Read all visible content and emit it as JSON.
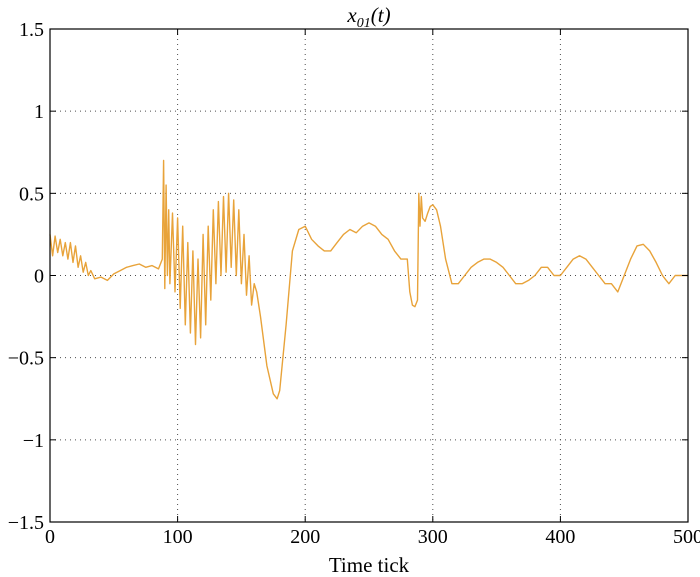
{
  "chart_data": {
    "type": "line",
    "title": {
      "base": "x",
      "sub": "01",
      "rest": "(t)"
    },
    "xlabel": "Time tick",
    "ylabel": "",
    "xlim": [
      0,
      500
    ],
    "ylim": [
      -1.5,
      1.5
    ],
    "xticks": [
      0,
      100,
      200,
      300,
      400,
      500
    ],
    "xtick_labels": [
      "0",
      "100",
      "200",
      "300",
      "400",
      "500"
    ],
    "yticks": [
      -1.5,
      -1,
      -0.5,
      0,
      0.5,
      1,
      1.5
    ],
    "ytick_labels": [
      "−1.5",
      "−1",
      "−0.5",
      "0",
      "0.5",
      "1",
      "1.5"
    ],
    "grid": true,
    "series": [
      {
        "color": "#E8A33A",
        "x": [
          0,
          2,
          4,
          6,
          8,
          10,
          12,
          14,
          16,
          18,
          20,
          22,
          24,
          26,
          28,
          30,
          32,
          35,
          40,
          45,
          50,
          55,
          60,
          65,
          70,
          75,
          80,
          85,
          88,
          89,
          90,
          91,
          92,
          93,
          94,
          96,
          98,
          100,
          102,
          104,
          106,
          108,
          110,
          112,
          114,
          116,
          118,
          120,
          122,
          124,
          126,
          128,
          130,
          132,
          134,
          136,
          138,
          140,
          142,
          144,
          146,
          148,
          150,
          152,
          154,
          156,
          158,
          160,
          162,
          165,
          170,
          175,
          178,
          180,
          185,
          190,
          195,
          200,
          205,
          210,
          215,
          220,
          225,
          230,
          235,
          240,
          245,
          250,
          255,
          260,
          265,
          270,
          275,
          280,
          282,
          284,
          286,
          288,
          289,
          290,
          291,
          292,
          294,
          296,
          298,
          300,
          303,
          306,
          310,
          315,
          320,
          325,
          330,
          335,
          340,
          345,
          350,
          355,
          360,
          365,
          370,
          375,
          380,
          385,
          390,
          395,
          400,
          405,
          410,
          415,
          420,
          425,
          430,
          435,
          440,
          445,
          450,
          455,
          460,
          465,
          470,
          475,
          480,
          482,
          485,
          490,
          500
        ],
        "y": [
          0.25,
          0.12,
          0.24,
          0.14,
          0.22,
          0.12,
          0.2,
          0.1,
          0.2,
          0.08,
          0.18,
          0.05,
          0.12,
          0.02,
          0.08,
          0.0,
          0.03,
          -0.02,
          -0.01,
          -0.03,
          0.01,
          0.03,
          0.05,
          0.06,
          0.07,
          0.05,
          0.06,
          0.04,
          0.1,
          0.7,
          -0.08,
          0.55,
          0.0,
          0.4,
          -0.05,
          0.38,
          -0.1,
          0.35,
          -0.2,
          0.3,
          -0.3,
          0.2,
          -0.35,
          0.15,
          -0.42,
          0.1,
          -0.38,
          0.25,
          -0.3,
          0.3,
          -0.15,
          0.4,
          -0.05,
          0.45,
          0.0,
          0.48,
          0.02,
          0.5,
          0.05,
          0.46,
          0.0,
          0.4,
          -0.05,
          0.25,
          -0.12,
          0.12,
          -0.18,
          -0.05,
          -0.1,
          -0.25,
          -0.55,
          -0.72,
          -0.75,
          -0.7,
          -0.3,
          0.15,
          0.28,
          0.3,
          0.22,
          0.18,
          0.15,
          0.15,
          0.2,
          0.25,
          0.28,
          0.26,
          0.3,
          0.32,
          0.3,
          0.25,
          0.22,
          0.15,
          0.1,
          0.1,
          -0.1,
          -0.18,
          -0.19,
          -0.15,
          0.5,
          0.3,
          0.48,
          0.35,
          0.33,
          0.38,
          0.42,
          0.43,
          0.4,
          0.3,
          0.1,
          -0.05,
          -0.05,
          0.0,
          0.05,
          0.08,
          0.1,
          0.1,
          0.08,
          0.05,
          0.0,
          -0.05,
          -0.05,
          -0.03,
          0.0,
          0.05,
          0.05,
          0.0,
          0.0,
          0.05,
          0.1,
          0.12,
          0.1,
          0.05,
          0.0,
          -0.05,
          -0.05,
          -0.1,
          0.0,
          0.1,
          0.18,
          0.19,
          0.15,
          0.08,
          0.0,
          -0.02,
          -0.05,
          0.0,
          0.0
        ]
      }
    ]
  }
}
